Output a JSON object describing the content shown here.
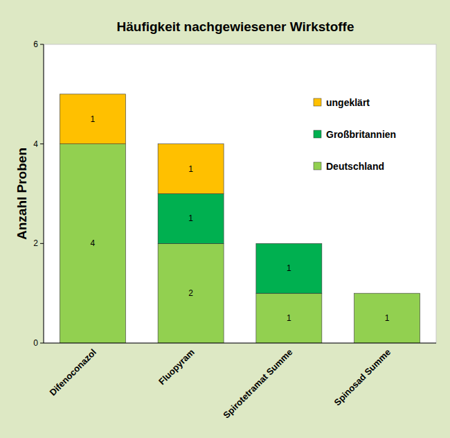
{
  "chart_data": {
    "type": "bar",
    "title": "Häufigkeit nachgewiesener Wirkstoffe",
    "y_label": "Anzahl Proben",
    "categories": [
      "Difenoconazol",
      "Fluopyram",
      "Spirotetramat Summe",
      "Spinosad Summe"
    ],
    "series": [
      {
        "name": "Deutschland",
        "color": "#92d050",
        "values": [
          4,
          2,
          1,
          1
        ]
      },
      {
        "name": "Großbritannien",
        "color": "#00b050",
        "values": [
          0,
          1,
          1,
          0
        ]
      },
      {
        "name": "ungeklärt",
        "color": "#ffc000",
        "values": [
          1,
          1,
          0,
          0
        ]
      }
    ],
    "ylim": [
      0,
      6
    ],
    "yticks": [
      0,
      2,
      4,
      6
    ],
    "grid": false,
    "stacked": true,
    "data_labels": true,
    "legend": "top right"
  }
}
